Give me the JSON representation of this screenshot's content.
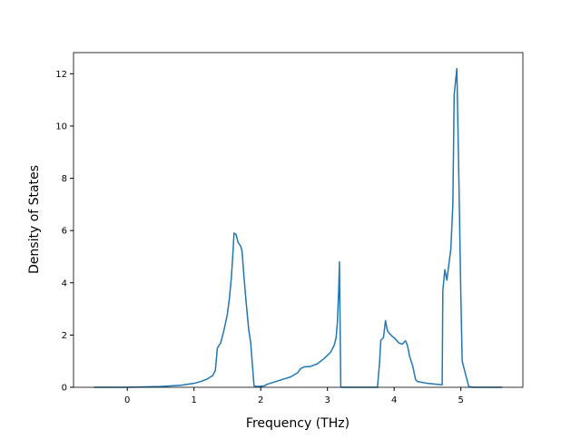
{
  "chart_data": {
    "type": "line",
    "xlabel": "Frequency (THz)",
    "ylabel": "Density of States",
    "x": [
      -0.5,
      0,
      0.5,
      0.8,
      1.0,
      1.1,
      1.2,
      1.28,
      1.32,
      1.35,
      1.4,
      1.45,
      1.5,
      1.53,
      1.56,
      1.58,
      1.6,
      1.63,
      1.66,
      1.7,
      1.72,
      1.75,
      1.78,
      1.82,
      1.85,
      1.88,
      1.9,
      1.95,
      2.05,
      2.1,
      2.3,
      2.45,
      2.55,
      2.6,
      2.65,
      2.75,
      2.85,
      2.95,
      3.05,
      3.1,
      3.13,
      3.15,
      3.17,
      3.18,
      3.2,
      3.21,
      3.5,
      3.75,
      3.78,
      3.8,
      3.84,
      3.87,
      3.9,
      3.95,
      4.02,
      4.07,
      4.12,
      4.17,
      4.2,
      4.23,
      4.28,
      4.32,
      4.35,
      4.5,
      4.7,
      4.72,
      4.73,
      4.76,
      4.79,
      4.82,
      4.85,
      4.88,
      4.9,
      4.94,
      4.97,
      5.0,
      5.02,
      5.07,
      5.12,
      5.2,
      5.62
    ],
    "series": [
      {
        "name": "DOS",
        "color": "#1f77b4",
        "values": [
          0,
          0,
          0.03,
          0.08,
          0.15,
          0.22,
          0.32,
          0.45,
          0.65,
          1.5,
          1.7,
          2.2,
          2.8,
          3.4,
          4.2,
          5.0,
          5.9,
          5.85,
          5.55,
          5.4,
          5.2,
          4.2,
          3.3,
          2.2,
          1.7,
          0.7,
          0.05,
          0.03,
          0.05,
          0.12,
          0.28,
          0.4,
          0.55,
          0.72,
          0.78,
          0.8,
          0.9,
          1.1,
          1.35,
          1.6,
          1.9,
          2.5,
          3.8,
          4.8,
          0.05,
          0,
          0,
          0,
          0.9,
          1.8,
          1.9,
          2.55,
          2.15,
          2.0,
          1.85,
          1.7,
          1.65,
          1.78,
          1.6,
          1.2,
          0.8,
          0.3,
          0.22,
          0.15,
          0.1,
          0.1,
          3.7,
          4.5,
          4.1,
          4.7,
          5.3,
          7.0,
          11.2,
          12.2,
          8.0,
          3.5,
          1.0,
          0.5,
          0.02,
          0,
          0
        ]
      }
    ],
    "xlim": [
      -0.806,
      5.93
    ],
    "xticks": [
      0,
      1,
      2,
      3,
      4,
      5
    ],
    "ylim": [
      0,
      12.81
    ],
    "yticks": [
      0,
      2,
      4,
      6,
      8,
      10,
      12
    ]
  }
}
